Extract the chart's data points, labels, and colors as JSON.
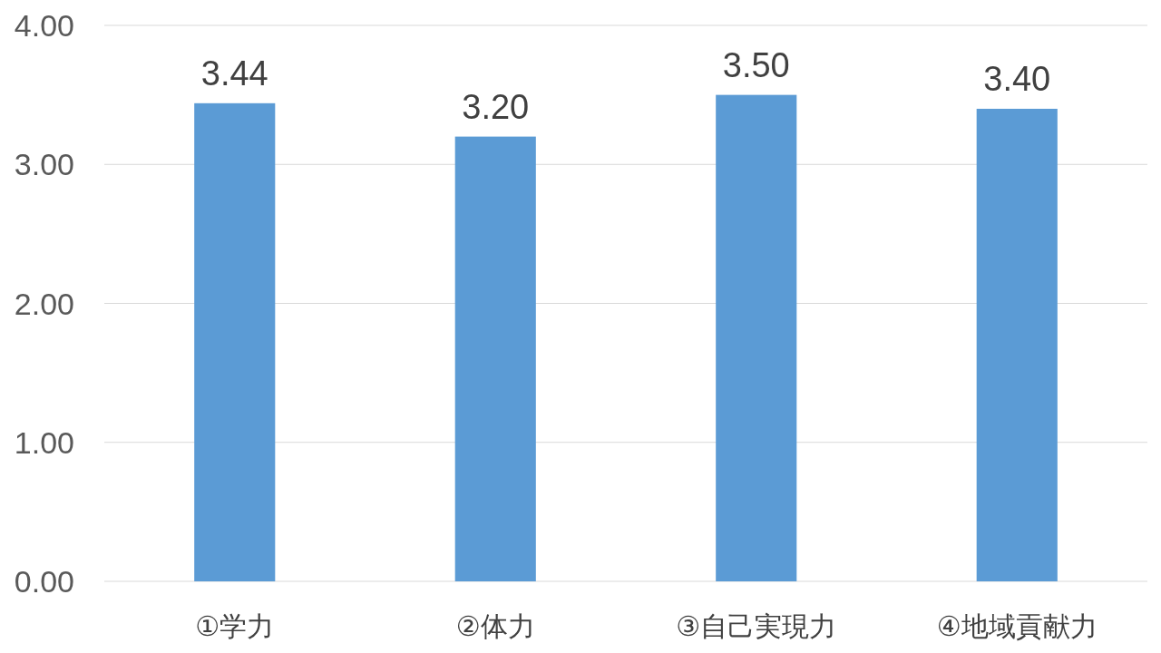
{
  "chart_data": {
    "type": "bar",
    "categories": [
      "①学力",
      "②体力",
      "③自己実現力",
      "④地域貢献力"
    ],
    "values": [
      3.44,
      3.2,
      3.5,
      3.4
    ],
    "value_labels": [
      "3.44",
      "3.20",
      "3.50",
      "3.40"
    ],
    "color": "#5b9bd5",
    "ylim": [
      0,
      4
    ],
    "yticks": [
      {
        "value": 0,
        "label": "0.00"
      },
      {
        "value": 1,
        "label": "1.00"
      },
      {
        "value": 2,
        "label": "2.00"
      },
      {
        "value": 3,
        "label": "3.00"
      },
      {
        "value": 4,
        "label": "4.00"
      }
    ],
    "grid": "y"
  }
}
